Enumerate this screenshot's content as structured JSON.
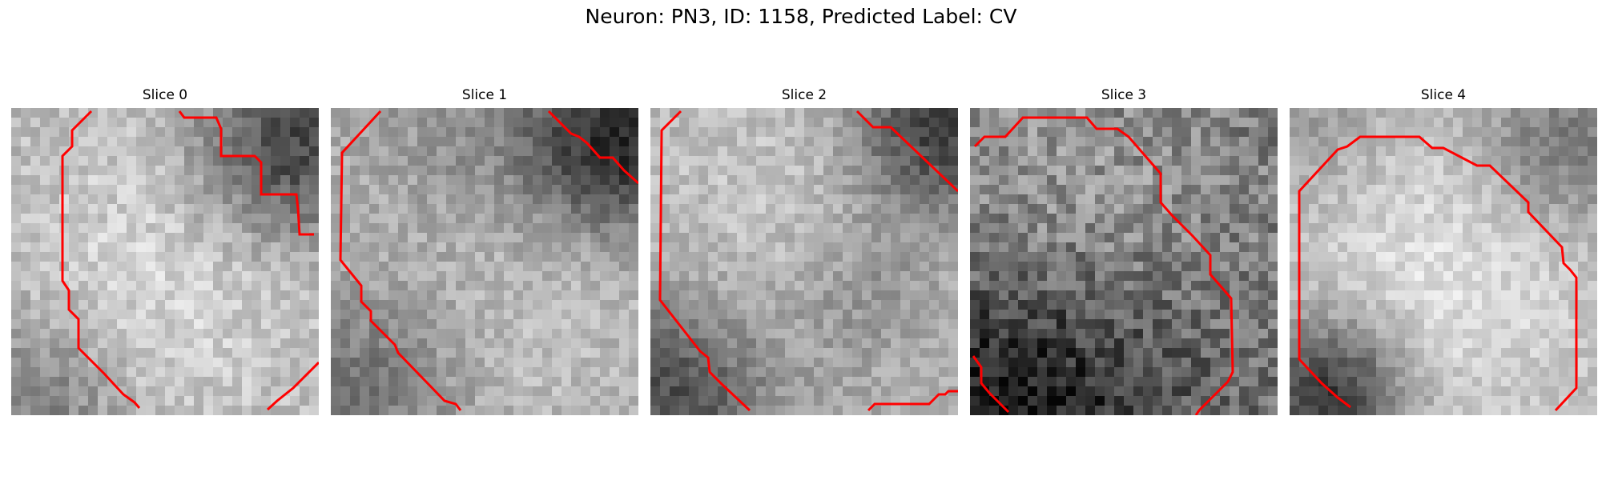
{
  "figure": {
    "suptitle": "Neuron: PN3, ID: 1158, Predicted Label: CV",
    "contour_color": "#ff0000",
    "colormap": "gray"
  },
  "panels": [
    {
      "title": "Slice 0"
    },
    {
      "title": "Slice 1"
    },
    {
      "title": "Slice 2"
    },
    {
      "title": "Slice 3"
    },
    {
      "title": "Slice 4"
    }
  ]
}
